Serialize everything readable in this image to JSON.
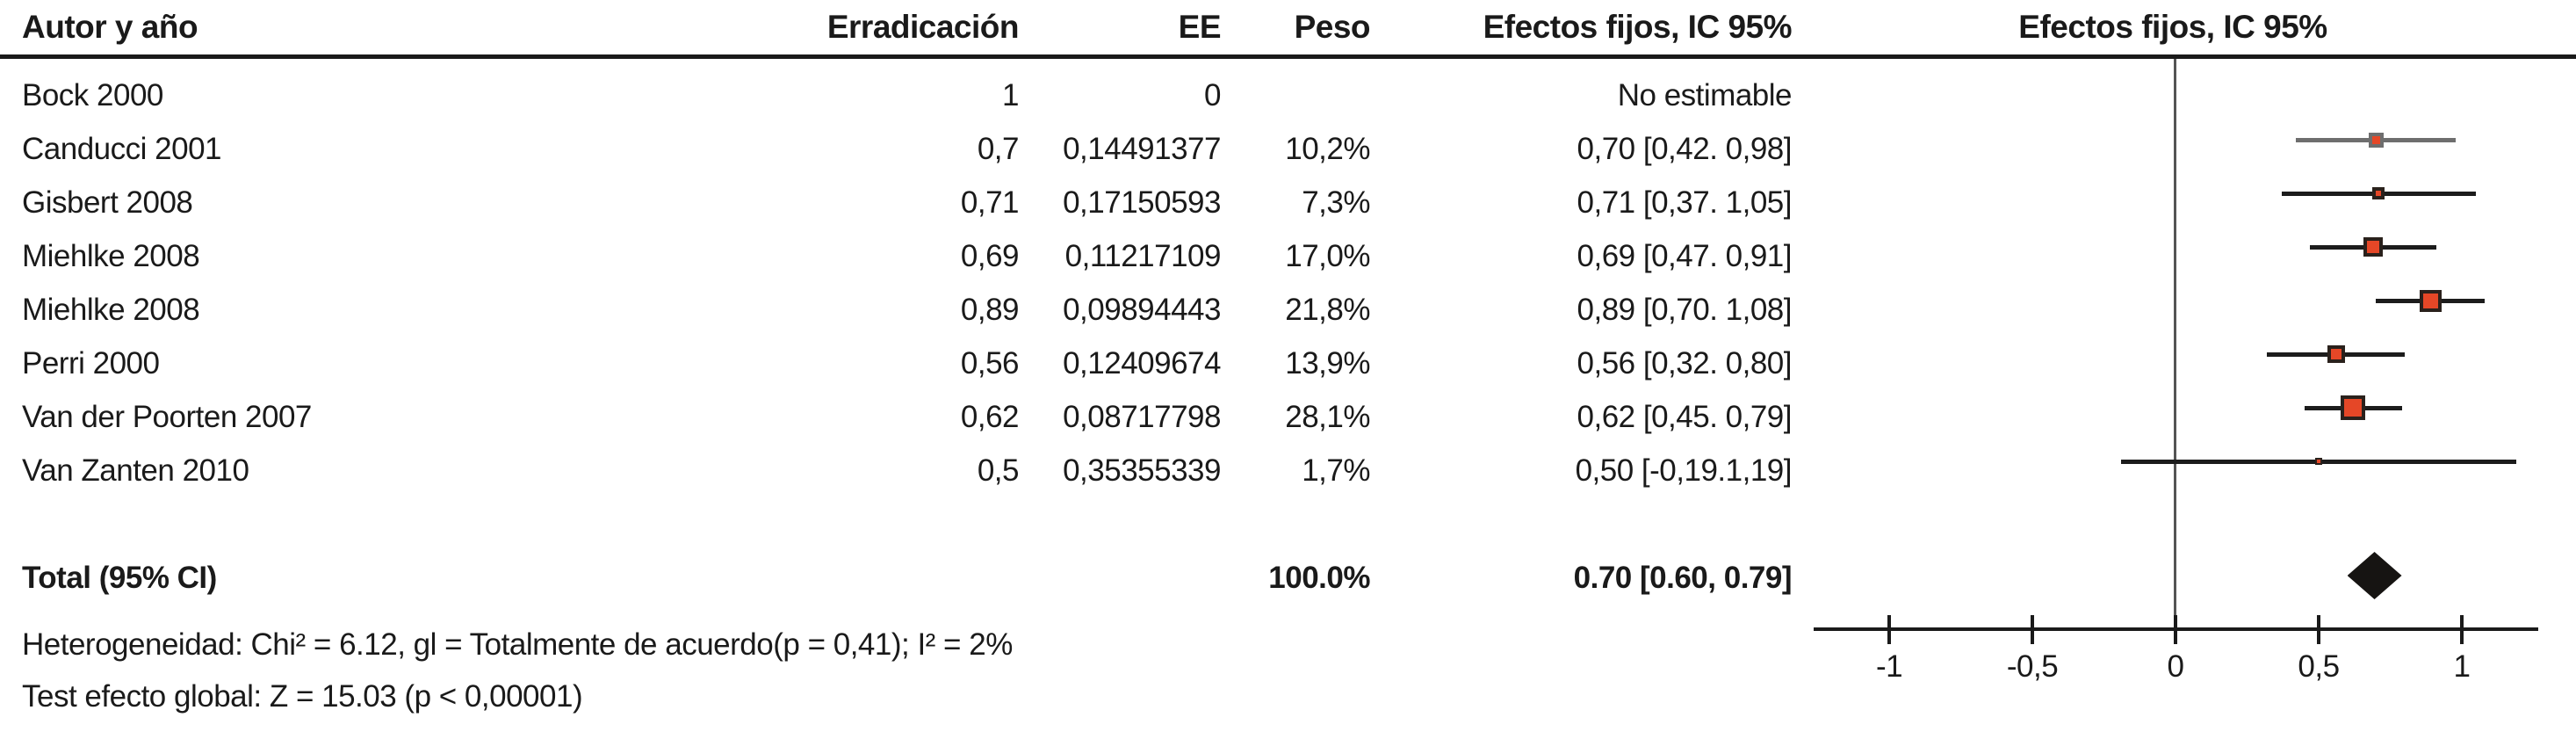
{
  "figure": {
    "columns": {
      "author": "Autor y año",
      "eradication": "Erradicación",
      "se": "EE",
      "weight": "Peso",
      "ci": "Efectos fijos, IC 95%",
      "plot": "Efectos fijos, IC 95%"
    },
    "rows": [
      {
        "author": "Bock 2000",
        "eradication": "1",
        "se": "0",
        "weight": "",
        "ci": "No estimable"
      },
      {
        "author": "Canducci 2001",
        "eradication": "0,7",
        "se": "0,14491377",
        "weight": "10,2%",
        "ci": "0,70 [0,42. 0,98]"
      },
      {
        "author": "Gisbert 2008",
        "eradication": "0,71",
        "se": "0,17150593",
        "weight": "7,3%",
        "ci": "0,71 [0,37. 1,05]"
      },
      {
        "author": "Miehlke 2008",
        "eradication": "0,69",
        "se": "0,11217109",
        "weight": "17,0%",
        "ci": "0,69 [0,47. 0,91]"
      },
      {
        "author": "Miehlke 2008",
        "eradication": "0,89",
        "se": "0,09894443",
        "weight": "21,8%",
        "ci": "0,89 [0,70. 1,08]"
      },
      {
        "author": "Perri 2000",
        "eradication": "0,56",
        "se": "0,12409674",
        "weight": "13,9%",
        "ci": "0,56 [0,32. 0,80]"
      },
      {
        "author": "Van der Poorten 2007",
        "eradication": "0,62",
        "se": "0,08717798",
        "weight": "28,1%",
        "ci": "0,62 [0,45. 0,79]"
      },
      {
        "author": "Van Zanten 2010",
        "eradication": "0,5",
        "se": "0,35355339",
        "weight": "1,7%",
        "ci": "0,50 [-0,19.1,19]"
      }
    ],
    "total": {
      "label": "Total (95% CI)",
      "weight": "100.0%",
      "ci": "0.70 [0.60, 0.79]"
    },
    "footnotes": [
      "Heterogeneidad: Chi² = 6.12, gl = Totalmente de acuerdo(p = 0,41); I² = 2%",
      "Test efecto global: Z = 15.03 (p < 0,00001)"
    ]
  },
  "chart_data": {
    "type": "forest",
    "title": "Efectos fijos, IC 95%",
    "x_axis": {
      "ticks": [
        -1,
        -0.5,
        0,
        0.5,
        1
      ],
      "tick_labels": [
        "-1",
        "-0,5",
        "0",
        "0,5",
        "1"
      ],
      "xlim": [
        -1.26,
        1.27
      ],
      "zero_line": 0,
      "grid": false
    },
    "studies": [
      {
        "label": "Bock 2000",
        "estimate": null,
        "ci": null,
        "weight_pct": null,
        "note": "No estimable"
      },
      {
        "label": "Canducci 2001",
        "estimate": 0.7,
        "ci": [
          0.42,
          0.98
        ],
        "weight_pct": 10.2,
        "style": "gray"
      },
      {
        "label": "Gisbert 2008",
        "estimate": 0.71,
        "ci": [
          0.37,
          1.05
        ],
        "weight_pct": 7.3,
        "style": "black"
      },
      {
        "label": "Miehlke 2008",
        "estimate": 0.69,
        "ci": [
          0.47,
          0.91
        ],
        "weight_pct": 17.0,
        "style": "black"
      },
      {
        "label": "Miehlke 2008",
        "estimate": 0.89,
        "ci": [
          0.7,
          1.08
        ],
        "weight_pct": 21.8,
        "style": "black"
      },
      {
        "label": "Perri 2000",
        "estimate": 0.56,
        "ci": [
          0.32,
          0.8
        ],
        "weight_pct": 13.9,
        "style": "black"
      },
      {
        "label": "Van der Poorten 2007",
        "estimate": 0.62,
        "ci": [
          0.45,
          0.79
        ],
        "weight_pct": 28.1,
        "style": "black"
      },
      {
        "label": "Van Zanten 2010",
        "estimate": 0.5,
        "ci": [
          -0.19,
          1.19
        ],
        "weight_pct": 1.7,
        "style": "black"
      }
    ],
    "total": {
      "label": "Total (95% CI)",
      "estimate": 0.7,
      "ci": [
        0.6,
        0.79
      ],
      "weight_pct": 100.0
    },
    "legend_position": "none",
    "colors": {
      "square_fill": "#e54727",
      "square_border": "#2a211c",
      "gray_series": "#6e6e6e",
      "diamond": "#161412",
      "axis": "#1a1a1a",
      "zero_line": "#545454"
    }
  }
}
